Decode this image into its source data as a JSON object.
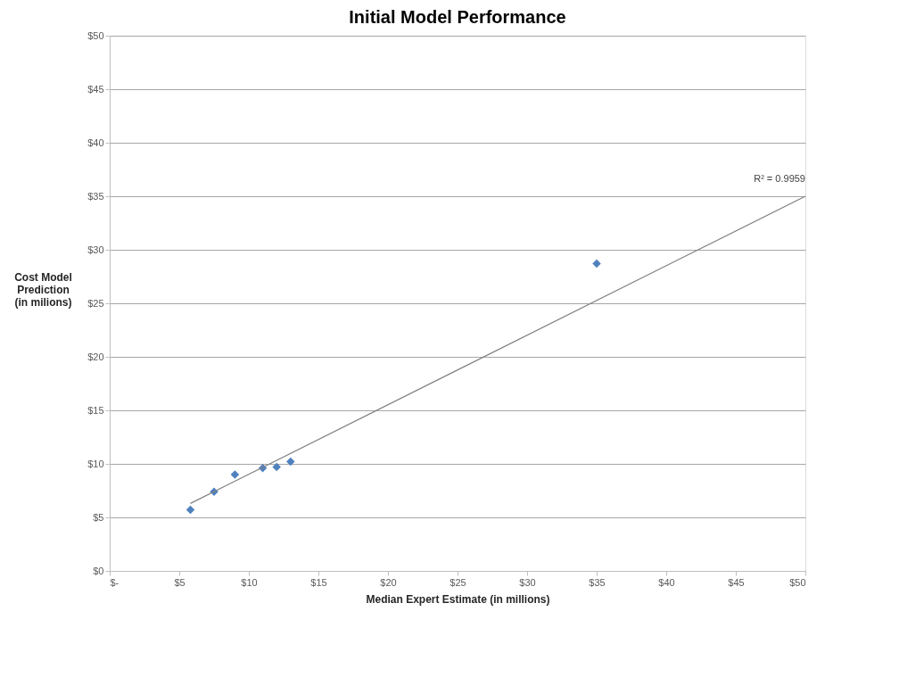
{
  "chart_data": {
    "type": "scatter",
    "title": "Initial Model Performance",
    "xlabel": "Median Expert Estimate (in millions)",
    "ylabel": "Cost Model Prediction (in milions)",
    "x": [
      5.8,
      7.5,
      9.0,
      11.0,
      12.0,
      13.0,
      35.0
    ],
    "series": [
      {
        "color": "#4f81bd",
        "marker": "diamond",
        "values": [
          5.7,
          7.4,
          9.0,
          9.6,
          9.7,
          10.2,
          28.7
        ]
      },
      {
        "type": "line",
        "color": "#808080",
        "marker": "none",
        "line_style": "solid",
        "x": [
          5.8,
          50
        ],
        "values": [
          6.3,
          35
        ]
      }
    ],
    "annotations": [
      {
        "text": "R² = 0.9959",
        "x": 50,
        "y": 35
      }
    ],
    "xlim": [
      0,
      50
    ],
    "ylim": [
      0,
      50
    ],
    "xticks": [
      {
        "value": 0,
        "label": "$-"
      },
      {
        "value": 5,
        "label": "$5"
      },
      {
        "value": 10,
        "label": "$10"
      },
      {
        "value": 15,
        "label": "$15"
      },
      {
        "value": 20,
        "label": "$20"
      },
      {
        "value": 25,
        "label": "$25"
      },
      {
        "value": 30,
        "label": "$30"
      },
      {
        "value": 35,
        "label": "$35"
      },
      {
        "value": 40,
        "label": "$40"
      },
      {
        "value": 45,
        "label": "$45"
      },
      {
        "value": 50,
        "label": "$50"
      }
    ],
    "yticks": [
      {
        "value": 0,
        "label": "$0"
      },
      {
        "value": 5,
        "label": "$5"
      },
      {
        "value": 10,
        "label": "$10"
      },
      {
        "value": 15,
        "label": "$15"
      },
      {
        "value": 20,
        "label": "$20"
      },
      {
        "value": 25,
        "label": "$25"
      },
      {
        "value": 30,
        "label": "$30"
      },
      {
        "value": 35,
        "label": "$35"
      },
      {
        "value": 40,
        "label": "$40"
      },
      {
        "value": 45,
        "label": "$45"
      },
      {
        "value": 50,
        "label": "$50"
      }
    ],
    "grid": "y"
  }
}
